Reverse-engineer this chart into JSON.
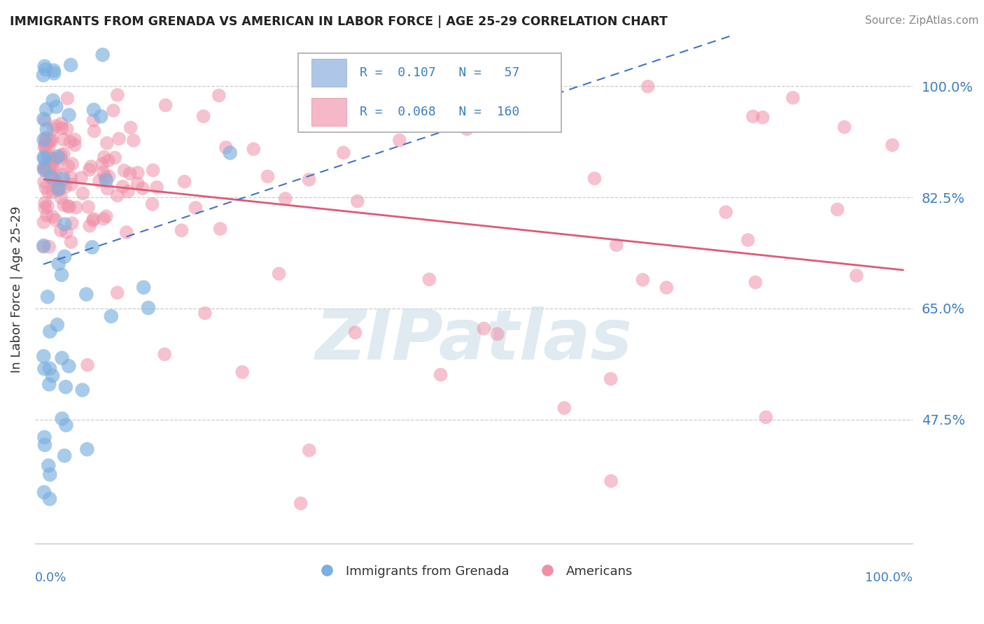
{
  "title": "IMMIGRANTS FROM GRENADA VS AMERICAN IN LABOR FORCE | AGE 25-29 CORRELATION CHART",
  "source": "Source: ZipAtlas.com",
  "ylabel": "In Labor Force | Age 25-29",
  "ytick_labels": [
    "100.0%",
    "82.5%",
    "65.0%",
    "47.5%"
  ],
  "ytick_values": [
    1.0,
    0.825,
    0.65,
    0.475
  ],
  "legend_label_grenada": "Immigrants from Grenada",
  "legend_label_americans": "Americans",
  "grenada_color": "#7ab0e0",
  "american_color": "#f090a8",
  "grenada_line_color": "#4472c4",
  "american_line_color": "#e05878",
  "watermark_color": "#ccdde8",
  "xlim": [
    0.0,
    1.0
  ],
  "background_color": "#ffffff",
  "grid_color": "#cccccc"
}
